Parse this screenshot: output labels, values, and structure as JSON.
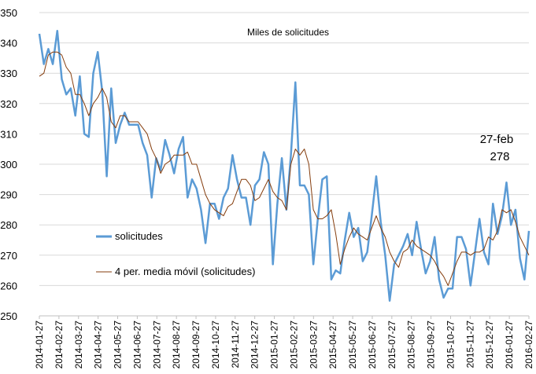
{
  "chart_data": {
    "type": "line",
    "title": "Miles de solicitudes",
    "xlabel": "",
    "ylabel": "",
    "ylim": [
      250,
      350
    ],
    "yticks": [
      250,
      260,
      270,
      280,
      290,
      300,
      310,
      320,
      330,
      340,
      350
    ],
    "grid": "horizontal",
    "legend_placement": "center-left",
    "x_tick_labels": [
      "2014-01-27",
      "2014-02-27",
      "2014-03-27",
      "2014-04-27",
      "2014-05-27",
      "2014-06-27",
      "2014-07-27",
      "2014-08-27",
      "2014-09-27",
      "2014-10-27",
      "2014-11-27",
      "2014-12-27",
      "2015-01-27",
      "2015-02-27",
      "2015-03-27",
      "2015-04-27",
      "2015-05-27",
      "2015-06-27",
      "2015-07-27",
      "2015-08-27",
      "2015-09-27",
      "2015-10-27",
      "2015-11-27",
      "2015-12-27",
      "2016-01-27",
      "2016-02-27"
    ],
    "annotation": {
      "line1": "27-feb",
      "line2": "278"
    },
    "series": [
      {
        "name": "solicitudes",
        "color": "#5b9bd5",
        "values": [
          343,
          333,
          338,
          333,
          344,
          328,
          323,
          325,
          316,
          329,
          310,
          309,
          330,
          337,
          324,
          296,
          325,
          307,
          313,
          317,
          313,
          313,
          313,
          307,
          303,
          289,
          302,
          298,
          308,
          303,
          297,
          305,
          309,
          289,
          295,
          292,
          285,
          274,
          287,
          287,
          282,
          289,
          292,
          303,
          295,
          289,
          289,
          280,
          293,
          295,
          304,
          300,
          267,
          287,
          302,
          285,
          303,
          327,
          293,
          293,
          290,
          267,
          282,
          295,
          296,
          262,
          265,
          264,
          275,
          284,
          276,
          279,
          268,
          271,
          283,
          296,
          281,
          270,
          255,
          267,
          270,
          273,
          277,
          270,
          281,
          272,
          264,
          268,
          276,
          262,
          256,
          259,
          259,
          276,
          276,
          272,
          260,
          271,
          282,
          271,
          267,
          287,
          277,
          283,
          294,
          280,
          285,
          269,
          262,
          278
        ]
      },
      {
        "name": "4 per. media móvil (solicitudes)",
        "color": "#843c0c",
        "values": [
          329,
          330,
          336,
          337,
          337,
          336,
          332,
          330,
          323,
          323,
          320,
          316,
          320,
          322,
          325,
          322,
          314,
          312,
          316,
          316,
          314,
          314,
          314,
          312,
          310,
          305,
          302,
          297,
          300,
          301,
          303,
          303,
          303,
          304,
          300,
          300,
          295,
          290,
          287,
          285,
          284,
          283,
          286,
          287,
          291,
          295,
          295,
          293,
          288,
          289,
          292,
          295,
          291,
          289,
          288,
          285,
          300,
          305,
          303,
          305,
          300,
          285,
          282,
          282,
          283,
          285,
          277,
          267,
          272,
          276,
          279,
          277,
          276,
          275,
          279,
          283,
          279,
          276,
          271,
          268,
          266,
          271,
          272,
          275,
          273,
          272,
          271,
          270,
          268,
          265,
          263,
          260,
          264,
          268,
          271,
          271,
          270,
          271,
          271,
          272,
          276,
          275,
          278,
          285,
          284,
          285,
          281,
          276,
          273,
          270
        ]
      }
    ]
  }
}
